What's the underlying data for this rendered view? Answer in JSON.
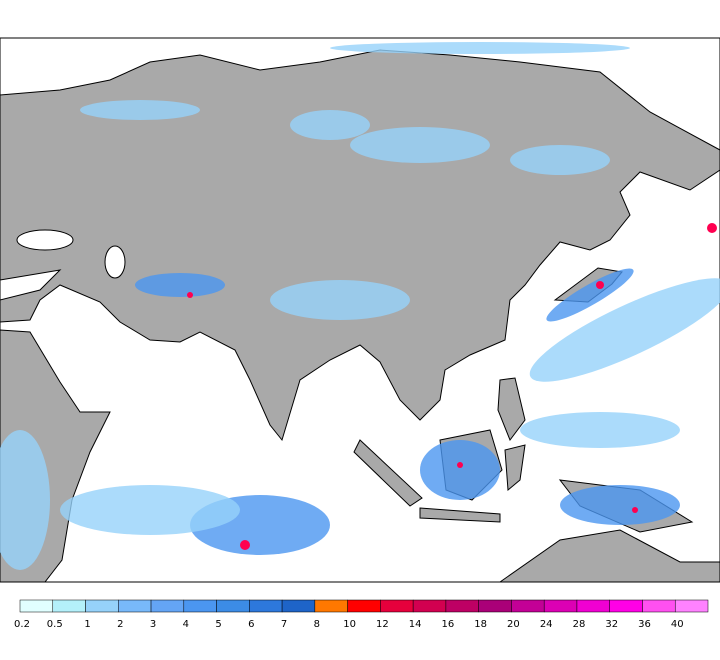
{
  "legend": {
    "labels": [
      0.2,
      0.5,
      1,
      2,
      3,
      4,
      5,
      6,
      7,
      8,
      10,
      12,
      14,
      16,
      18,
      20,
      24,
      28,
      32,
      36,
      40
    ],
    "colors": [
      "#e1ffff",
      "#b4f0fa",
      "#96d2fa",
      "#78b9fa",
      "#64a5f5",
      "#4b96f0",
      "#3c8ce6",
      "#2d78dc",
      "#1e64c8",
      "#ff7800",
      "#ff0000",
      "#e6003c",
      "#d20050",
      "#be0064",
      "#aa0078",
      "#c30096",
      "#dc00b4",
      "#f000d2",
      "#ff00e6",
      "#ff50f0",
      "#ff82ff"
    ]
  }
}
